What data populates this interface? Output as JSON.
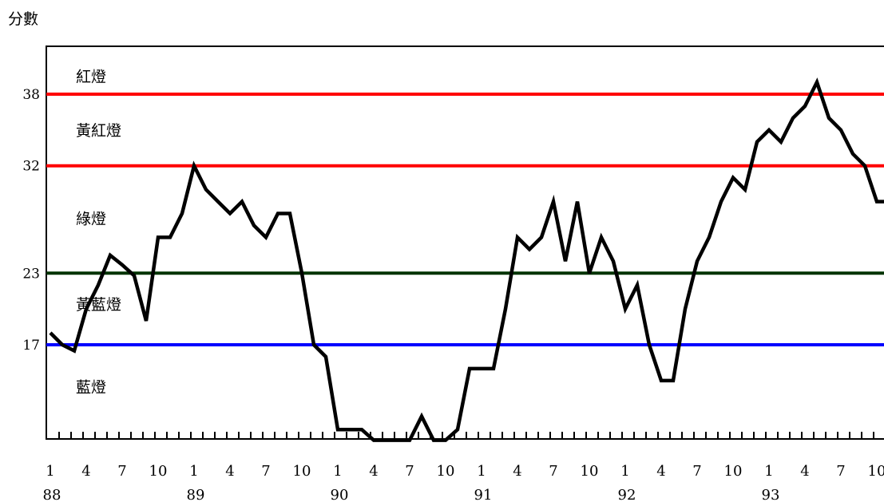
{
  "chart_data": {
    "type": "line",
    "ylabel": "分數",
    "ylim": [
      8.6,
      41
    ],
    "thresholds": [
      {
        "value": 38,
        "color": "#ff0000"
      },
      {
        "value": 32,
        "color": "#ff0000"
      },
      {
        "value": 23,
        "color": "#003300"
      },
      {
        "value": 17,
        "color": "#0000ff"
      }
    ],
    "zone_labels": [
      {
        "text": "紅燈",
        "y": 39.5
      },
      {
        "text": "黃紅燈",
        "y": 35
      },
      {
        "text": "綠燈",
        "y": 27.6
      },
      {
        "text": "黃藍燈",
        "y": 20.4
      },
      {
        "text": "藍燈",
        "y": 13.5
      }
    ],
    "yticks": [
      "38",
      "32",
      "23",
      "17"
    ],
    "ytick_values": [
      38,
      32,
      23,
      17
    ],
    "xticks": [
      {
        "index": 0,
        "label": "1"
      },
      {
        "index": 3,
        "label": "4"
      },
      {
        "index": 6,
        "label": "7"
      },
      {
        "index": 9,
        "label": "10"
      },
      {
        "index": 12,
        "label": "1"
      },
      {
        "index": 15,
        "label": "4"
      },
      {
        "index": 18,
        "label": "7"
      },
      {
        "index": 21,
        "label": "10"
      },
      {
        "index": 24,
        "label": "1"
      },
      {
        "index": 27,
        "label": "4"
      },
      {
        "index": 30,
        "label": "7"
      },
      {
        "index": 33,
        "label": "10"
      },
      {
        "index": 36,
        "label": "1"
      },
      {
        "index": 39,
        "label": "4"
      },
      {
        "index": 42,
        "label": "7"
      },
      {
        "index": 45,
        "label": "10"
      },
      {
        "index": 48,
        "label": "1"
      },
      {
        "index": 51,
        "label": "4"
      },
      {
        "index": 54,
        "label": "7"
      },
      {
        "index": 57,
        "label": "10"
      },
      {
        "index": 60,
        "label": "1"
      },
      {
        "index": 63,
        "label": "4"
      },
      {
        "index": 66,
        "label": "7"
      },
      {
        "index": 69,
        "label": "10"
      }
    ],
    "year_labels": [
      {
        "index": 0,
        "label": "88"
      },
      {
        "index": 12,
        "label": "89"
      },
      {
        "index": 24,
        "label": "90"
      },
      {
        "index": 36,
        "label": "91"
      },
      {
        "index": 48,
        "label": "92"
      },
      {
        "index": 60,
        "label": "93"
      }
    ],
    "months": 71,
    "values": [
      18,
      17,
      16.5,
      20,
      22,
      24.5,
      23.7,
      22.8,
      19,
      26,
      26,
      28,
      32,
      30,
      29,
      28,
      29,
      27,
      26,
      28,
      28,
      23,
      17,
      16,
      9.9,
      9.9,
      9.9,
      9,
      9,
      9,
      9,
      11,
      9,
      9,
      9.9,
      15,
      15,
      15,
      20,
      26,
      25,
      26,
      29,
      24,
      29,
      23,
      26,
      24,
      20,
      22,
      17,
      14,
      14,
      20,
      24,
      26,
      29,
      31,
      30,
      34,
      35,
      34,
      36,
      37,
      39,
      36,
      35,
      33,
      32,
      29,
      29
    ]
  }
}
